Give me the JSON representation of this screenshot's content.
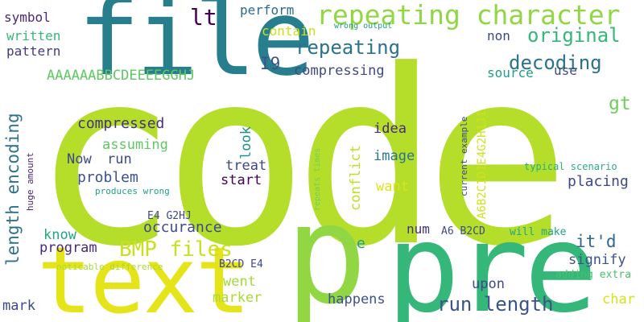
{
  "words": [
    {
      "text": "code",
      "color": "#b5de2b"
    },
    {
      "text": "file",
      "color": "#277f8e"
    },
    {
      "text": "pre",
      "color": "#35b779"
    },
    {
      "text": "text",
      "color": "#e5e419"
    },
    {
      "text": "p",
      "color": "#90d743"
    },
    {
      "text": "repeating character",
      "color": "#90d743"
    },
    {
      "text": "original",
      "color": "#35b779"
    },
    {
      "text": "repeating",
      "color": "#2c728e"
    },
    {
      "text": "decoding",
      "color": "#2c728e"
    },
    {
      "text": "BMP files",
      "color": "#c8e020"
    },
    {
      "text": "run length",
      "color": "#3b528b"
    },
    {
      "text": "length encoding",
      "color": "#2c728e"
    },
    {
      "text": "lt",
      "color": "#440154"
    },
    {
      "text": "gt",
      "color": "#6ece58"
    },
    {
      "text": "I9",
      "color": "#3b528b"
    },
    {
      "text": "it'd",
      "color": "#31688e"
    },
    {
      "text": "compressed",
      "color": "#46327e"
    },
    {
      "text": "problem",
      "color": "#3b528b"
    },
    {
      "text": "placing",
      "color": "#3e4989"
    },
    {
      "text": "occurance",
      "color": "#3e4989"
    },
    {
      "text": "program",
      "color": "#482878"
    },
    {
      "text": "perform",
      "color": "#31688e"
    },
    {
      "text": "contain",
      "color": "#cae11f"
    },
    {
      "text": "symbol",
      "color": "#482878"
    },
    {
      "text": "written",
      "color": "#35b779"
    },
    {
      "text": "pattern",
      "color": "#443983"
    },
    {
      "text": "AAAAAABBCDEEEEGGHJ",
      "color": "#5ec962"
    },
    {
      "text": "non",
      "color": "#3e4989"
    },
    {
      "text": "use",
      "color": "#3e4989"
    },
    {
      "text": "source",
      "color": "#1f9e89"
    },
    {
      "text": "compressing",
      "color": "#3e4989"
    },
    {
      "text": "assuming",
      "color": "#5ec962"
    },
    {
      "text": "run",
      "color": "#3e4989"
    },
    {
      "text": "Now",
      "color": "#3e4989"
    },
    {
      "text": "look",
      "color": "#21918c"
    },
    {
      "text": "treat",
      "color": "#414487"
    },
    {
      "text": "start",
      "color": "#440154"
    },
    {
      "text": "idea",
      "color": "#482878"
    },
    {
      "text": "image",
      "color": "#2c728e"
    },
    {
      "text": "want",
      "color": "#dde318"
    },
    {
      "text": "conflict",
      "color": "#bddf26"
    },
    {
      "text": "signify",
      "color": "#3b528b"
    },
    {
      "text": "know",
      "color": "#21a685"
    },
    {
      "text": "went",
      "color": "#a0da39"
    },
    {
      "text": "marker",
      "color": "#a8db34"
    },
    {
      "text": "mark",
      "color": "#3e4989"
    },
    {
      "text": "happens",
      "color": "#3b528b"
    },
    {
      "text": "upon",
      "color": "#3e4989"
    },
    {
      "text": "char",
      "color": "#d8e219"
    },
    {
      "text": "num",
      "color": "#46327e"
    },
    {
      "text": "A6B2C1D1E4G2H1J1",
      "color": "#d0e11c"
    },
    {
      "text": "A6 B2CD",
      "color": "#3e4989"
    },
    {
      "text": "E4 G2HJ",
      "color": "#3e4989"
    },
    {
      "text": "B2CD E4",
      "color": "#3e4989"
    },
    {
      "text": "will make",
      "color": "#20a486"
    },
    {
      "text": "adding extra",
      "color": "#48c16e"
    },
    {
      "text": "typical scenario",
      "color": "#29af7f"
    },
    {
      "text": "current example",
      "color": "#3e4989"
    },
    {
      "text": "repeats times",
      "color": "#73d056"
    },
    {
      "text": "produces wrong",
      "color": "#1fa187"
    },
    {
      "text": "huge amount",
      "color": "#482878"
    },
    {
      "text": "noticable difference",
      "color": "#a5db36"
    },
    {
      "text": "wrong output",
      "color": "#1fa187"
    },
    {
      "text": "e",
      "color": "#1f9e89"
    }
  ]
}
